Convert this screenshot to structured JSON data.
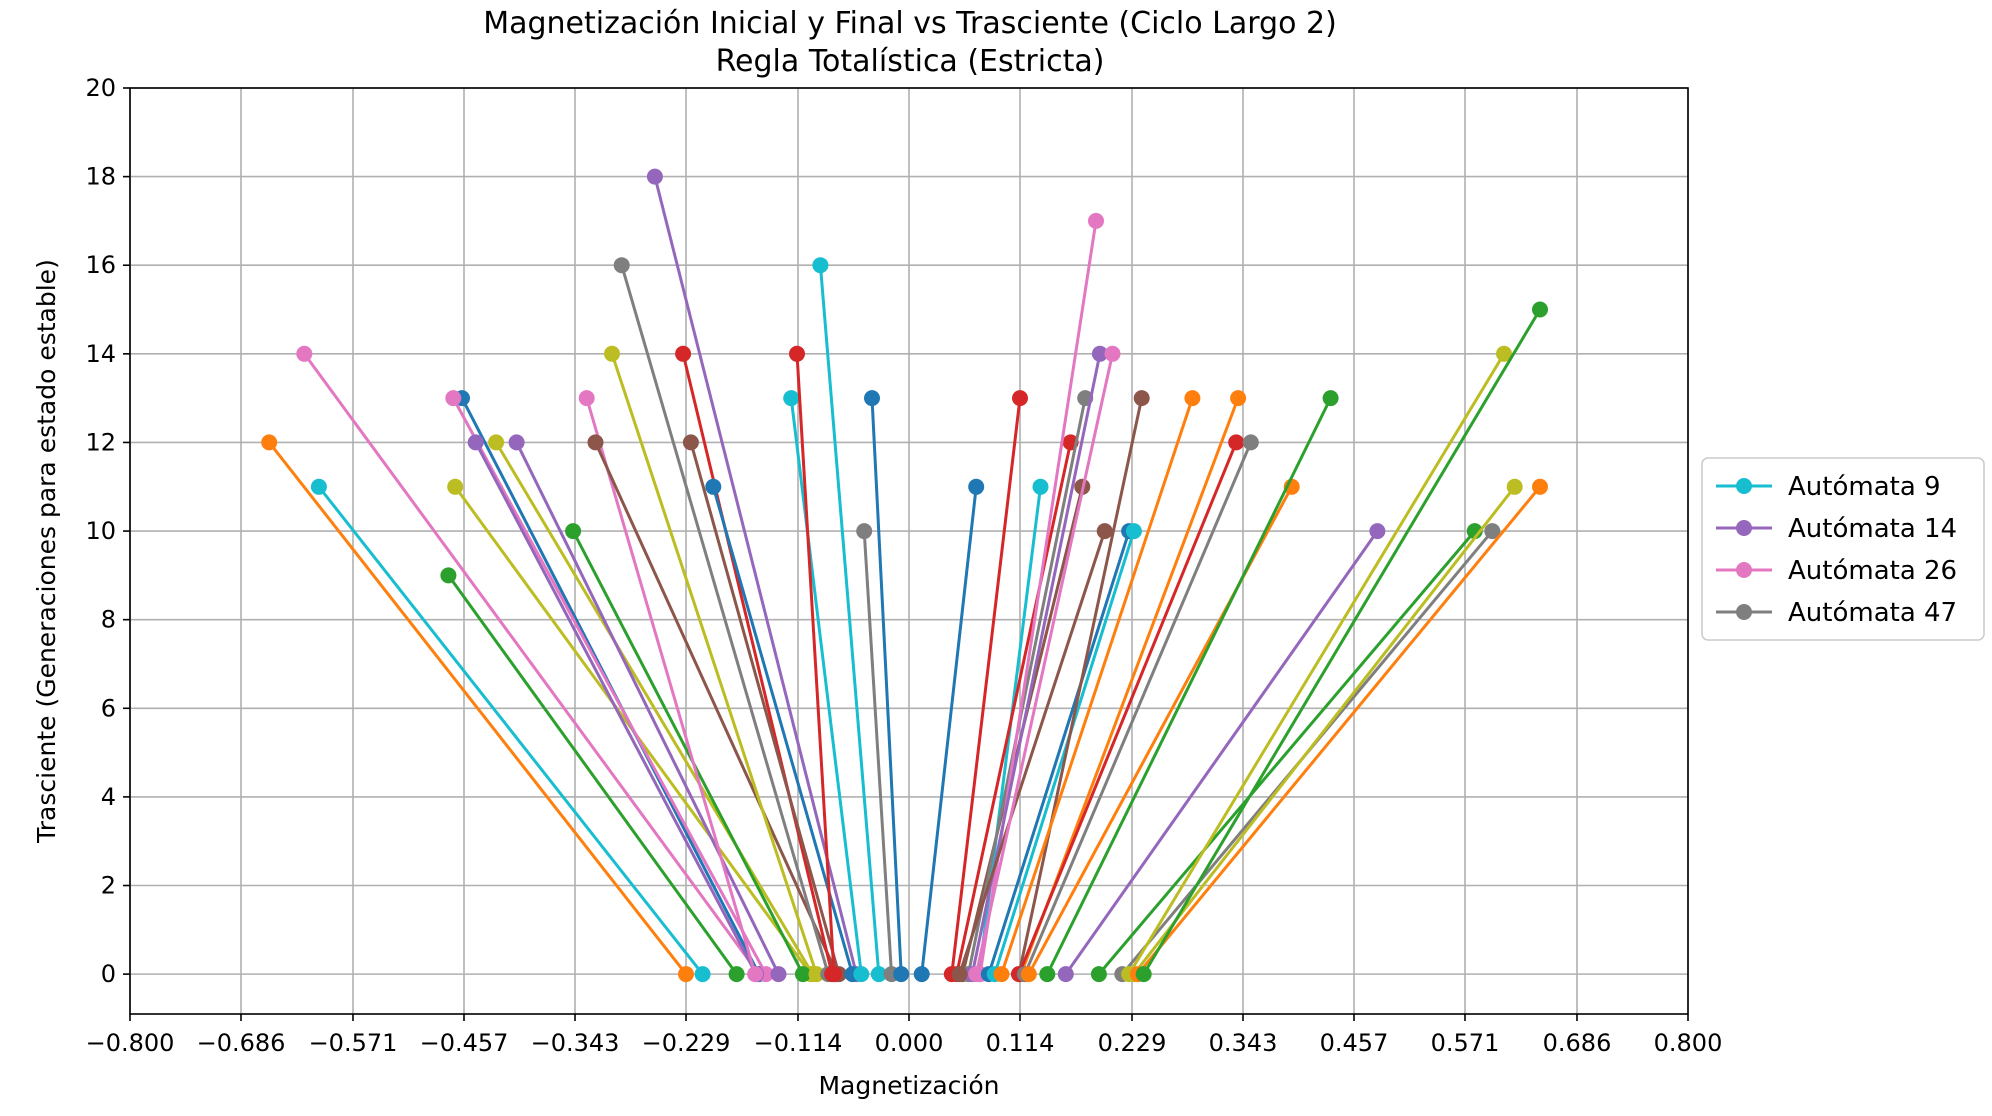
{
  "chart_data": {
    "type": "line",
    "title": "Magnetización Inicial y Final vs Trasciente (Ciclo Largo 2)",
    "subtitle": "Regla Totalística (Estricta)",
    "xlabel": "Magnetización",
    "ylabel": "Trasciente (Generaciones para estado estable)",
    "xlim": [
      -0.8,
      0.8
    ],
    "ylim": [
      -0.9,
      20
    ],
    "xticks": [
      -0.8,
      -0.686,
      -0.571,
      -0.457,
      -0.343,
      -0.229,
      -0.114,
      0.0,
      0.114,
      0.229,
      0.343,
      0.457,
      0.571,
      0.686,
      0.8
    ],
    "xtick_labels": [
      "−0.800",
      "−0.686",
      "−0.571",
      "−0.457",
      "−0.343",
      "−0.229",
      "−0.114",
      "0.000",
      "0.114",
      "0.229",
      "0.343",
      "0.457",
      "0.571",
      "0.686",
      "0.800"
    ],
    "yticks": [
      0,
      2,
      4,
      6,
      8,
      10,
      12,
      14,
      16,
      18,
      20
    ],
    "ytick_labels": [
      "0",
      "2",
      "4",
      "6",
      "8",
      "10",
      "12",
      "14",
      "16",
      "18",
      "20"
    ],
    "grid": true,
    "legend_position": "right",
    "legend": [
      {
        "label": "Autómata 9",
        "color": "#17becf"
      },
      {
        "label": "Autómata 14",
        "color": "#9467bd"
      },
      {
        "label": "Autómata 26",
        "color": "#e377c2"
      },
      {
        "label": "Autómata 47",
        "color": "#7f7f7f"
      }
    ],
    "series": [
      {
        "color": "#ff7f0e",
        "x": [
          -0.657,
          -0.229
        ],
        "y": [
          12,
          0
        ]
      },
      {
        "color": "#17becf",
        "x": [
          -0.606,
          -0.212
        ],
        "y": [
          11,
          0
        ]
      },
      {
        "color": "#e377c2",
        "x": [
          -0.621,
          -0.154
        ],
        "y": [
          14,
          0
        ]
      },
      {
        "color": "#2ca02c",
        "x": [
          -0.473,
          -0.177
        ],
        "y": [
          9,
          0
        ]
      },
      {
        "color": "#bcbd22",
        "x": [
          -0.466,
          -0.101
        ],
        "y": [
          11,
          0
        ]
      },
      {
        "color": "#1f77b4",
        "x": [
          -0.459,
          -0.154
        ],
        "y": [
          13,
          0
        ]
      },
      {
        "color": "#e377c2",
        "x": [
          -0.468,
          -0.147
        ],
        "y": [
          13,
          0
        ]
      },
      {
        "color": "#9467bd",
        "x": [
          -0.445,
          -0.157
        ],
        "y": [
          12,
          0
        ]
      },
      {
        "color": "#bcbd22",
        "x": [
          -0.424,
          -0.099
        ],
        "y": [
          12,
          0
        ]
      },
      {
        "color": "#9467bd",
        "x": [
          -0.403,
          -0.134
        ],
        "y": [
          12,
          0
        ]
      },
      {
        "color": "#2ca02c",
        "x": [
          -0.345,
          -0.109
        ],
        "y": [
          10,
          0
        ]
      },
      {
        "color": "#e377c2",
        "x": [
          -0.331,
          -0.158
        ],
        "y": [
          13,
          0
        ]
      },
      {
        "color": "#8c564b",
        "x": [
          -0.322,
          -0.074
        ],
        "y": [
          12,
          0
        ]
      },
      {
        "color": "#bcbd22",
        "x": [
          -0.305,
          -0.095
        ],
        "y": [
          14,
          0
        ]
      },
      {
        "color": "#7f7f7f",
        "x": [
          -0.295,
          -0.083
        ],
        "y": [
          16,
          0
        ]
      },
      {
        "color": "#9467bd",
        "x": [
          -0.261,
          -0.054
        ],
        "y": [
          18,
          0
        ]
      },
      {
        "color": "#d62728",
        "x": [
          -0.232,
          -0.079
        ],
        "y": [
          14,
          0
        ]
      },
      {
        "color": "#8c564b",
        "x": [
          -0.224,
          -0.072
        ],
        "y": [
          12,
          0
        ]
      },
      {
        "color": "#1f77b4",
        "x": [
          -0.201,
          -0.058
        ],
        "y": [
          11,
          0
        ]
      },
      {
        "color": "#17becf",
        "x": [
          -0.121,
          -0.049
        ],
        "y": [
          13,
          0
        ]
      },
      {
        "color": "#d62728",
        "x": [
          -0.115,
          -0.077
        ],
        "y": [
          14,
          0
        ]
      },
      {
        "color": "#17becf",
        "x": [
          -0.091,
          -0.031
        ],
        "y": [
          16,
          0
        ]
      },
      {
        "color": "#7f7f7f",
        "x": [
          -0.046,
          -0.018
        ],
        "y": [
          10,
          0
        ]
      },
      {
        "color": "#1f77b4",
        "x": [
          -0.038,
          -0.008
        ],
        "y": [
          13,
          0
        ]
      },
      {
        "color": "#1f77b4",
        "x": [
          0.069,
          0.013
        ],
        "y": [
          11,
          0
        ]
      },
      {
        "color": "#d62728",
        "x": [
          0.114,
          0.044
        ],
        "y": [
          13,
          0
        ]
      },
      {
        "color": "#17becf",
        "x": [
          0.135,
          0.072
        ],
        "y": [
          11,
          0
        ]
      },
      {
        "color": "#d62728",
        "x": [
          0.166,
          0.049
        ],
        "y": [
          12,
          0
        ]
      },
      {
        "color": "#8c564b",
        "x": [
          0.178,
          0.055
        ],
        "y": [
          11,
          0
        ]
      },
      {
        "color": "#7f7f7f",
        "x": [
          0.181,
          0.061
        ],
        "y": [
          13,
          0
        ]
      },
      {
        "color": "#e377c2",
        "x": [
          0.192,
          0.073
        ],
        "y": [
          17,
          0
        ]
      },
      {
        "color": "#9467bd",
        "x": [
          0.196,
          0.065
        ],
        "y": [
          14,
          0
        ]
      },
      {
        "color": "#8c564b",
        "x": [
          0.201,
          0.052
        ],
        "y": [
          10,
          0
        ]
      },
      {
        "color": "#e377c2",
        "x": [
          0.209,
          0.069
        ],
        "y": [
          14,
          0
        ]
      },
      {
        "color": "#1f77b4",
        "x": [
          0.226,
          0.082
        ],
        "y": [
          10,
          0
        ]
      },
      {
        "color": "#17becf",
        "x": [
          0.231,
          0.088
        ],
        "y": [
          10,
          0
        ]
      },
      {
        "color": "#8c564b",
        "x": [
          0.239,
          0.113
        ],
        "y": [
          13,
          0
        ]
      },
      {
        "color": "#ff7f0e",
        "x": [
          0.291,
          0.095
        ],
        "y": [
          13,
          0
        ]
      },
      {
        "color": "#ff7f0e",
        "x": [
          0.338,
          0.115
        ],
        "y": [
          13,
          0
        ]
      },
      {
        "color": "#d62728",
        "x": [
          0.336,
          0.113
        ],
        "y": [
          12,
          0
        ]
      },
      {
        "color": "#7f7f7f",
        "x": [
          0.351,
          0.119
        ],
        "y": [
          12,
          0
        ]
      },
      {
        "color": "#ff7f0e",
        "x": [
          0.393,
          0.123
        ],
        "y": [
          11,
          0
        ]
      },
      {
        "color": "#2ca02c",
        "x": [
          0.433,
          0.142
        ],
        "y": [
          13,
          0
        ]
      },
      {
        "color": "#9467bd",
        "x": [
          0.481,
          0.161
        ],
        "y": [
          10,
          0
        ]
      },
      {
        "color": "#2ca02c",
        "x": [
          0.581,
          0.195
        ],
        "y": [
          10,
          0
        ]
      },
      {
        "color": "#7f7f7f",
        "x": [
          0.599,
          0.219
        ],
        "y": [
          10,
          0
        ]
      },
      {
        "color": "#bcbd22",
        "x": [
          0.611,
          0.226
        ],
        "y": [
          14,
          0
        ]
      },
      {
        "color": "#bcbd22",
        "x": [
          0.622,
          0.231
        ],
        "y": [
          11,
          0
        ]
      },
      {
        "color": "#ff7f0e",
        "x": [
          0.648,
          0.235
        ],
        "y": [
          11,
          0
        ]
      },
      {
        "color": "#2ca02c",
        "x": [
          0.648,
          0.241
        ],
        "y": [
          15,
          0
        ]
      }
    ]
  }
}
